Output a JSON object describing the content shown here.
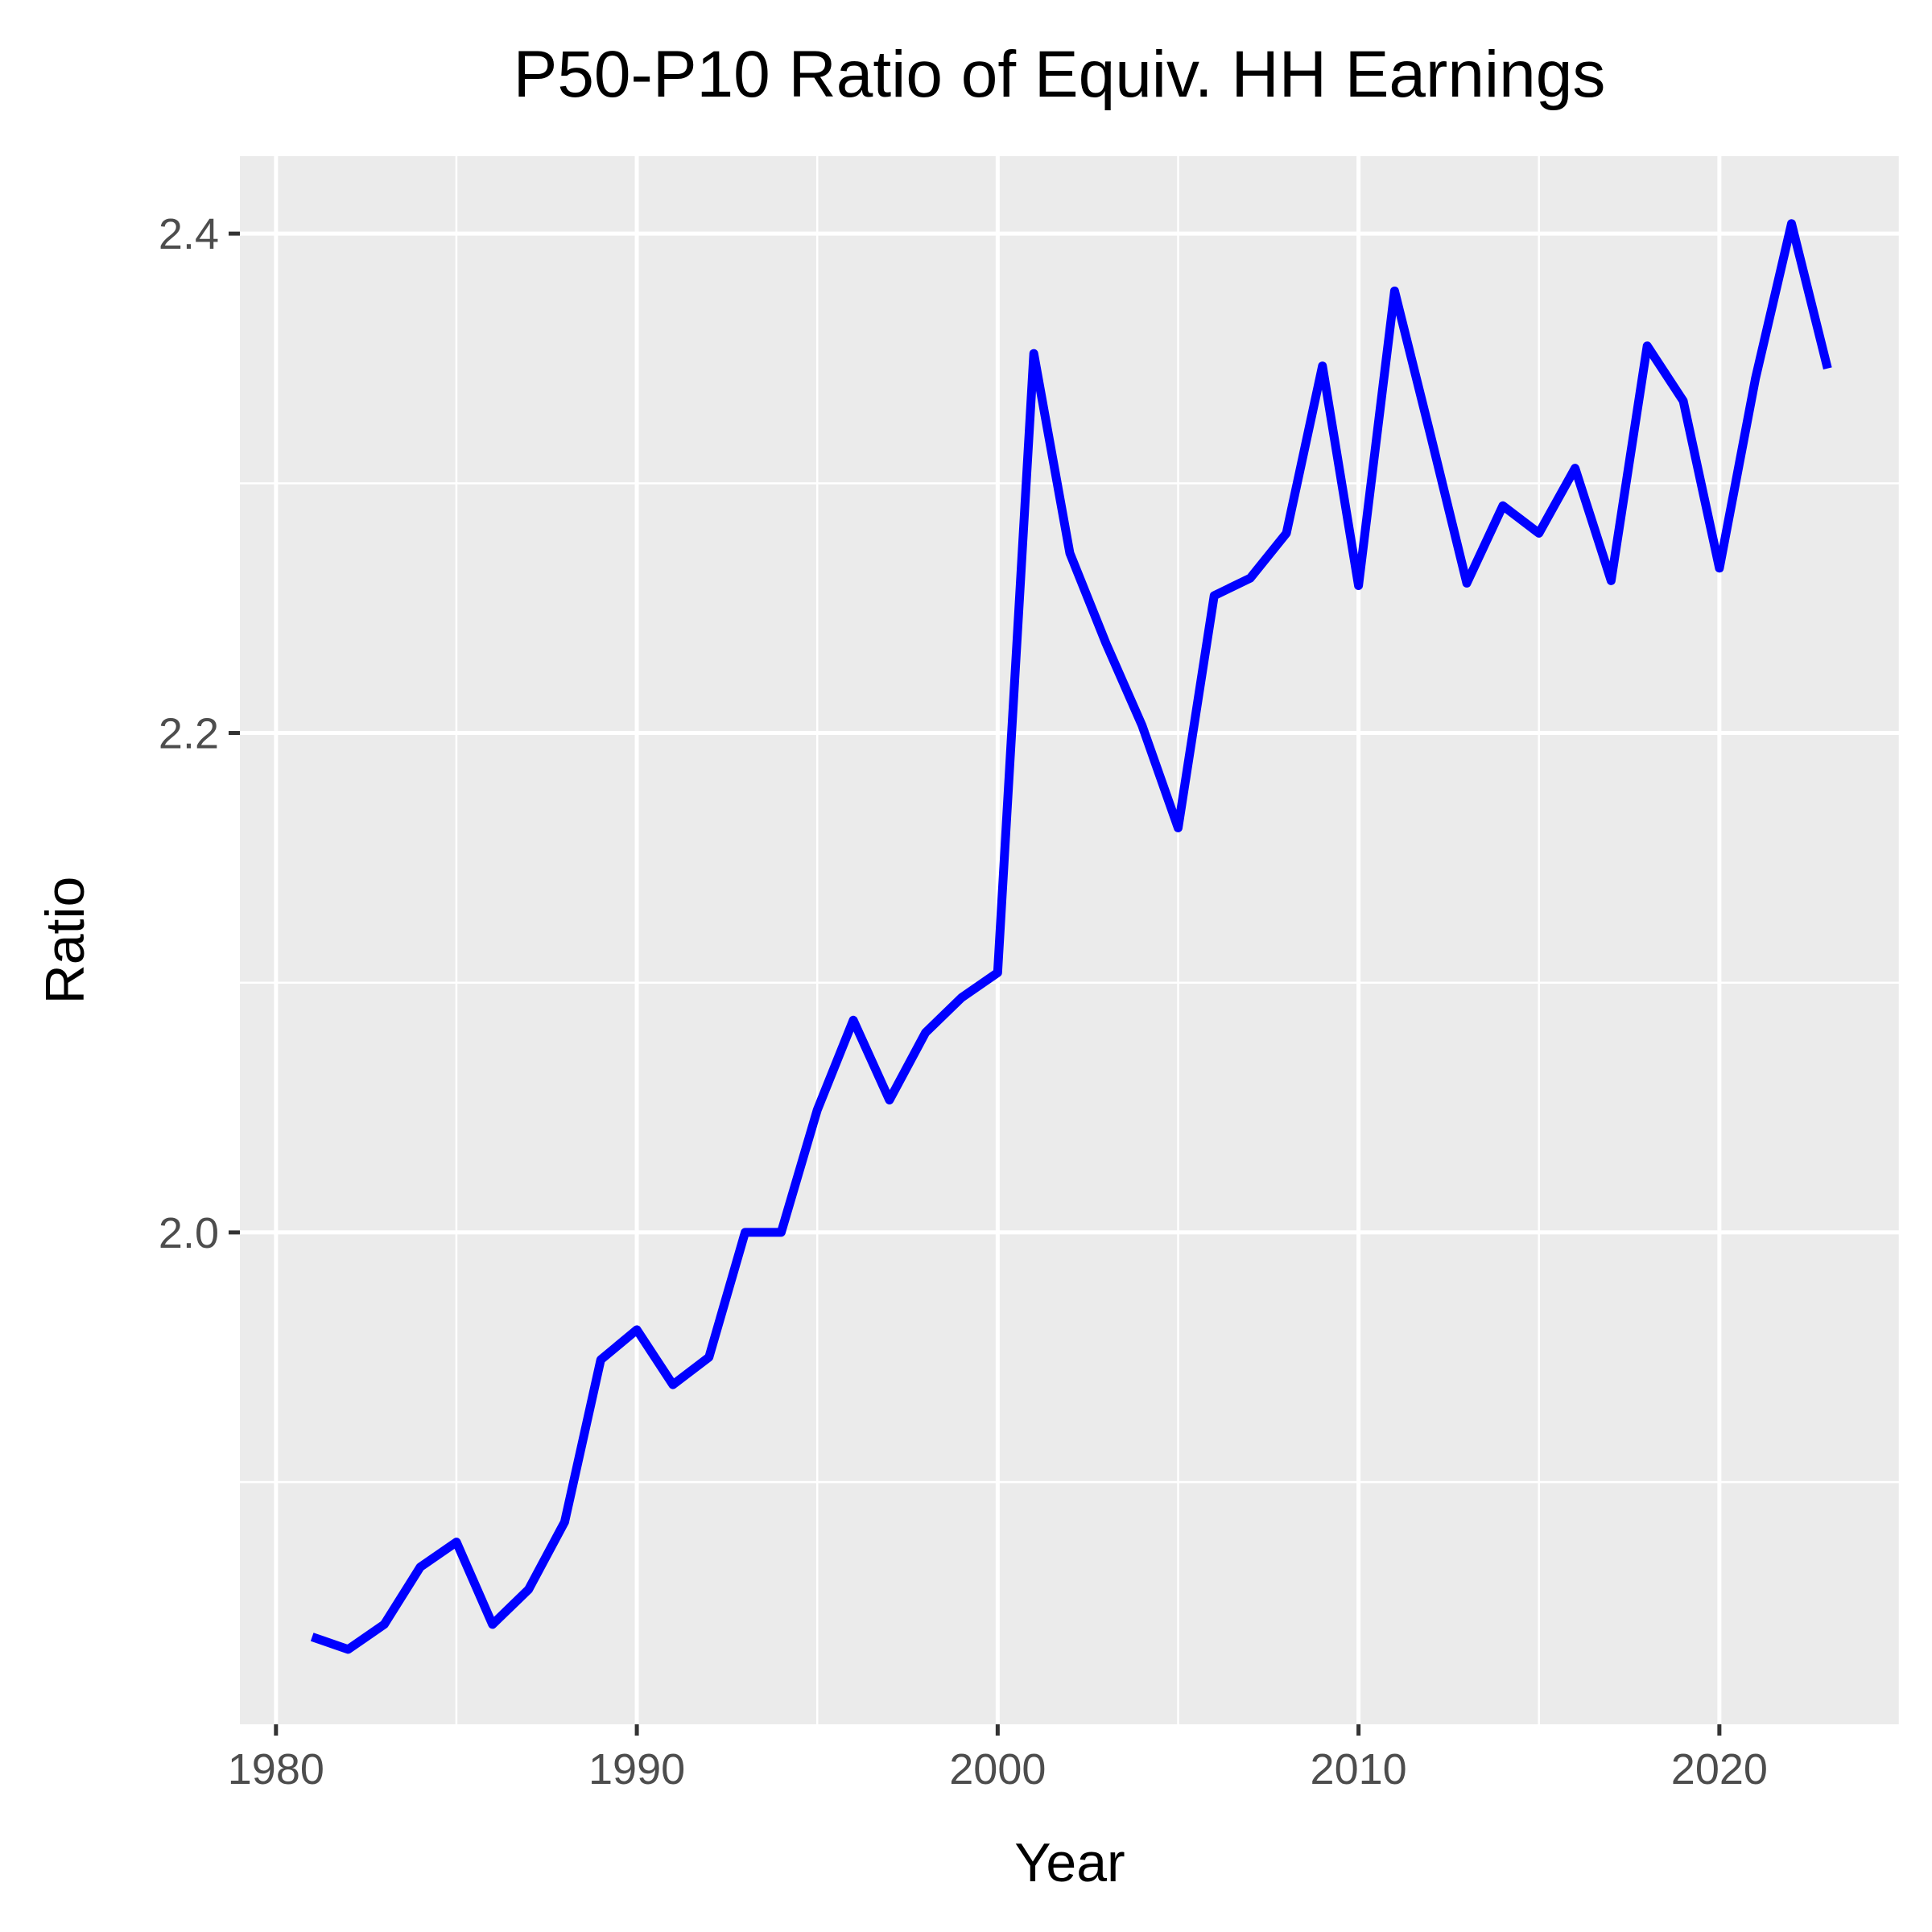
{
  "chart_data": {
    "type": "line",
    "title": "P50-P10 Ratio of Equiv. HH Earnings",
    "xlabel": "Year",
    "ylabel": "Ratio",
    "xlim": [
      1979,
      2025
    ],
    "ylim": [
      1.803,
      2.431
    ],
    "x_ticks": [
      1980,
      1990,
      2000,
      2010,
      2020
    ],
    "x_tick_labels": [
      "1980",
      "1990",
      "2000",
      "2010",
      "2020"
    ],
    "y_ticks": [
      2.0,
      2.2,
      2.4
    ],
    "y_tick_labels": [
      "2.0",
      "2.2",
      "2.4"
    ],
    "grid": true,
    "legend": "none",
    "series": [
      {
        "color": "#0000ff",
        "x": [
          1981,
          1982,
          1983,
          1984,
          1985,
          1986,
          1987,
          1988,
          1989,
          1990,
          1991,
          1992,
          1993,
          1994,
          1995,
          1996,
          1997,
          1998,
          1999,
          2000,
          2001,
          2002,
          2003,
          2004,
          2005,
          2006,
          2007,
          2008,
          2009,
          2010,
          2011,
          2012,
          2013,
          2014,
          2015,
          2016,
          2017,
          2018,
          2019,
          2020,
          2021,
          2022,
          2023
        ],
        "y": [
          1.838,
          1.833,
          1.843,
          1.866,
          1.876,
          1.843,
          1.857,
          1.884,
          1.949,
          1.961,
          1.939,
          1.95,
          2.0,
          2.0,
          2.049,
          2.085,
          2.053,
          2.08,
          2.094,
          2.104,
          2.352,
          2.272,
          2.236,
          2.203,
          2.162,
          2.255,
          2.262,
          2.28,
          2.347,
          2.259,
          2.377,
          2.319,
          2.26,
          2.291,
          2.28,
          2.306,
          2.261,
          2.355,
          2.333,
          2.266,
          2.342,
          2.404,
          2.346
        ]
      }
    ]
  }
}
